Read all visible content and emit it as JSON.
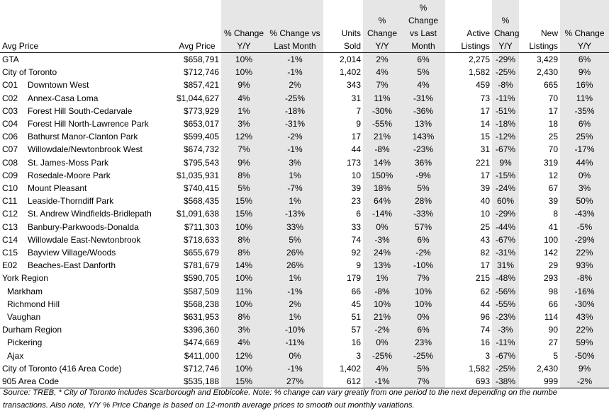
{
  "headers": [
    "Avg Price",
    "Avg Price",
    "% Change Y/Y",
    "% Change vs Last Month",
    "Units Sold",
    "% Change Y/Y",
    "% Change vs Last Month",
    "Active Listings",
    "% Change Y/Y",
    "New Listings",
    "% Change Y/Y"
  ],
  "rows": [
    {
      "code": "",
      "name": "GTA",
      "indent": false,
      "cells": [
        "$658,791",
        "10%",
        "-1%",
        "2,014",
        "2%",
        "6%",
        "2,275",
        "-29%",
        "3,429",
        "6%"
      ]
    },
    {
      "code": "",
      "name": "City of Toronto",
      "indent": false,
      "cells": [
        "$712,746",
        "10%",
        "-1%",
        "1,402",
        "4%",
        "5%",
        "1,582",
        "-25%",
        "2,430",
        "9%"
      ]
    },
    {
      "code": "C01",
      "name": "Downtown West",
      "indent": false,
      "cells": [
        "$857,421",
        "9%",
        "2%",
        "343",
        "7%",
        "4%",
        "459",
        "-8%",
        "665",
        "16%"
      ]
    },
    {
      "code": "C02",
      "name": "Annex-Casa Loma",
      "indent": false,
      "cells": [
        "$1,044,627",
        "4%",
        "-25%",
        "31",
        "11%",
        "-31%",
        "73",
        "-11%",
        "70",
        "11%"
      ]
    },
    {
      "code": "C03",
      "name": "Forest Hill South-Cedarvale",
      "indent": false,
      "cells": [
        "$773,929",
        "1%",
        "-18%",
        "7",
        "-30%",
        "-36%",
        "17",
        "-51%",
        "17",
        "-35%"
      ]
    },
    {
      "code": "C04",
      "name": "Forest Hill North-Lawrence Park",
      "indent": false,
      "cells": [
        "$653,017",
        "3%",
        "-31%",
        "9",
        "-55%",
        "13%",
        "14",
        "-18%",
        "18",
        "6%"
      ]
    },
    {
      "code": "C06",
      "name": "Bathurst Manor-Clanton Park",
      "indent": false,
      "cells": [
        "$599,405",
        "12%",
        "-2%",
        "17",
        "21%",
        "143%",
        "15",
        "-12%",
        "25",
        "25%"
      ]
    },
    {
      "code": "C07",
      "name": "Willowdale/Newtonbrook West",
      "indent": false,
      "cells": [
        "$674,732",
        "7%",
        "-1%",
        "44",
        "-8%",
        "-23%",
        "31",
        "-67%",
        "70",
        "-17%"
      ]
    },
    {
      "code": "C08",
      "name": "St. James-Moss Park",
      "indent": false,
      "cells": [
        "$795,543",
        "9%",
        "3%",
        "173",
        "14%",
        "36%",
        "221",
        "9%",
        "319",
        "44%"
      ]
    },
    {
      "code": "C09",
      "name": "Rosedale-Moore Park",
      "indent": false,
      "cells": [
        "$1,035,931",
        "8%",
        "1%",
        "10",
        "150%",
        "-9%",
        "17",
        "-15%",
        "12",
        "0%"
      ]
    },
    {
      "code": "C10",
      "name": "Mount Pleasant",
      "indent": false,
      "cells": [
        "$740,415",
        "5%",
        "-7%",
        "39",
        "18%",
        "5%",
        "39",
        "-24%",
        "67",
        "3%"
      ]
    },
    {
      "code": "C11",
      "name": "Leaside-Thorndiff Park",
      "indent": false,
      "cells": [
        "$568,435",
        "15%",
        "1%",
        "23",
        "64%",
        "28%",
        "40",
        "60%",
        "39",
        "50%"
      ]
    },
    {
      "code": "C12",
      "name": "St. Andrew Windfields-Bridlepath",
      "indent": false,
      "cells": [
        "$1,091,638",
        "15%",
        "-13%",
        "6",
        "-14%",
        "-33%",
        "10",
        "-29%",
        "8",
        "-43%"
      ]
    },
    {
      "code": "C13",
      "name": "Banbury-Parkwoods-Donalda",
      "indent": false,
      "cells": [
        "$711,303",
        "10%",
        "33%",
        "33",
        "0%",
        "57%",
        "25",
        "-44%",
        "41",
        "-5%"
      ]
    },
    {
      "code": "C14",
      "name": "Willowdale East-Newtonbrook",
      "indent": false,
      "cells": [
        "$718,633",
        "8%",
        "5%",
        "74",
        "-3%",
        "6%",
        "43",
        "-67%",
        "100",
        "-29%"
      ]
    },
    {
      "code": "C15",
      "name": "Bayview Village/Woods",
      "indent": false,
      "cells": [
        "$655,679",
        "8%",
        "26%",
        "92",
        "24%",
        "-2%",
        "82",
        "-31%",
        "142",
        "22%"
      ]
    },
    {
      "code": "E02",
      "name": "Beaches-East Danforth",
      "indent": false,
      "cells": [
        "$781,679",
        "14%",
        "26%",
        "9",
        "13%",
        "-10%",
        "17",
        "31%",
        "29",
        "93%"
      ]
    },
    {
      "code": "",
      "name": "York Region",
      "indent": false,
      "cells": [
        "$590,705",
        "10%",
        "1%",
        "179",
        "1%",
        "7%",
        "215",
        "-48%",
        "293",
        "-8%"
      ]
    },
    {
      "code": "",
      "name": "Markham",
      "indent": true,
      "cells": [
        "$587,509",
        "11%",
        "-1%",
        "66",
        "-8%",
        "10%",
        "62",
        "-56%",
        "98",
        "-16%"
      ]
    },
    {
      "code": "",
      "name": "Richmond Hill",
      "indent": true,
      "cells": [
        "$568,238",
        "10%",
        "2%",
        "45",
        "10%",
        "10%",
        "44",
        "-55%",
        "66",
        "-30%"
      ]
    },
    {
      "code": "",
      "name": "Vaughan",
      "indent": true,
      "cells": [
        "$631,953",
        "8%",
        "1%",
        "51",
        "21%",
        "0%",
        "96",
        "-23%",
        "114",
        "43%"
      ]
    },
    {
      "code": "",
      "name": "Durham Region",
      "indent": false,
      "cells": [
        "$396,360",
        "3%",
        "-10%",
        "57",
        "-2%",
        "6%",
        "74",
        "-3%",
        "90",
        "22%"
      ]
    },
    {
      "code": "",
      "name": "Pickering",
      "indent": true,
      "cells": [
        "$474,669",
        "4%",
        "-11%",
        "16",
        "0%",
        "23%",
        "16",
        "-11%",
        "27",
        "59%"
      ]
    },
    {
      "code": "",
      "name": "Ajax",
      "indent": true,
      "cells": [
        "$411,000",
        "12%",
        "0%",
        "3",
        "-25%",
        "-25%",
        "3",
        "-67%",
        "5",
        "-50%"
      ]
    },
    {
      "code": "",
      "name": "City of Toronto (416 Area Code)",
      "indent": false,
      "cells": [
        "$712,746",
        "10%",
        "-1%",
        "1,402",
        "4%",
        "5%",
        "1,582",
        "-25%",
        "2,430",
        "9%"
      ]
    },
    {
      "code": "",
      "name": "905 Area Code",
      "indent": false,
      "cells": [
        "$535,188",
        "15%",
        "27%",
        "612",
        "-1%",
        "7%",
        "693",
        "-38%",
        "999",
        "-2%"
      ]
    }
  ],
  "footnote": {
    "line1": "Source: TREB, * City of Toronto includes Scarborough and Etobicoke. Note: % change can vary greatly from one period to the next depending on the numbe",
    "line2": "transactions. Also note, Y/Y % Price Change is based on 12-month average prices to smooth out monthly variations."
  },
  "colors": {
    "shade": "#e7e6e6",
    "text": "#000000"
  }
}
